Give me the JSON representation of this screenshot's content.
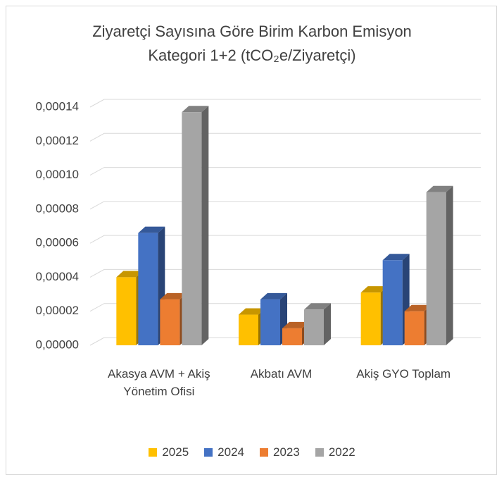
{
  "chart_data": {
    "type": "bar3d",
    "title": [
      "Ziyaretçi Sayısına Göre Birim Karbon Emisyon",
      "Kategori 1+2  (tCO₂e/Ziyaretçi)"
    ],
    "categories": [
      "Akasya AVM + Akiş Yönetim Ofisi",
      "Akbatı AVM",
      "Akiş GYO Toplam"
    ],
    "series": [
      {
        "name": "2025",
        "color": "#ffc000",
        "values": [
          4e-05,
          1.8e-05,
          3.1e-05
        ]
      },
      {
        "name": "2024",
        "color": "#4472c4",
        "values": [
          6.6e-05,
          2.7e-05,
          5e-05
        ]
      },
      {
        "name": "2023",
        "color": "#ed7d31",
        "values": [
          2.7e-05,
          1e-05,
          2e-05
        ]
      },
      {
        "name": "2022",
        "color": "#a5a5a5",
        "values": [
          0.000137,
          2.1e-05,
          9e-05
        ]
      }
    ],
    "ylim": [
      0,
      0.00014
    ],
    "yticks": [
      {
        "value": 0,
        "label": "0,00000"
      },
      {
        "value": 2e-05,
        "label": "0,00002"
      },
      {
        "value": 4e-05,
        "label": "0,00004"
      },
      {
        "value": 6e-05,
        "label": "0,00006"
      },
      {
        "value": 8e-05,
        "label": "0,00008"
      },
      {
        "value": 0.0001,
        "label": "0,00010"
      },
      {
        "value": 0.00012,
        "label": "0,00012"
      },
      {
        "value": 0.00014,
        "label": "0,00014"
      }
    ],
    "grid": true,
    "legend": "bottom"
  }
}
